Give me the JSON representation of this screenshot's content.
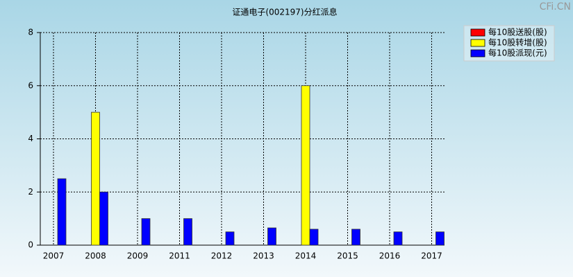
{
  "chart_data": {
    "type": "bar",
    "title": "证通电子(002197)分红派息",
    "watermark": "CFi.CN",
    "categories": [
      "2007",
      "2008",
      "2009",
      "2011",
      "2012",
      "2013",
      "2014",
      "2015",
      "2016",
      "2017"
    ],
    "series": [
      {
        "name": "每10股送股(股)",
        "color": "#ff0000",
        "values": [
          0,
          0,
          0,
          0,
          0,
          0,
          0,
          0,
          0,
          0
        ]
      },
      {
        "name": "每10股转增(股)",
        "color": "#ffff00",
        "values": [
          0,
          5,
          0,
          0,
          0,
          0,
          6,
          0,
          0,
          0
        ]
      },
      {
        "name": "每10股派现(元)",
        "color": "#0000ff",
        "values": [
          2.5,
          2,
          1,
          1,
          0.5,
          0.65,
          0.6,
          0.6,
          0.5,
          0.5
        ]
      }
    ],
    "ylim": [
      0,
      8
    ],
    "yticks": [
      0,
      2,
      4,
      6,
      8
    ],
    "grid": true,
    "legend": "top-right"
  }
}
